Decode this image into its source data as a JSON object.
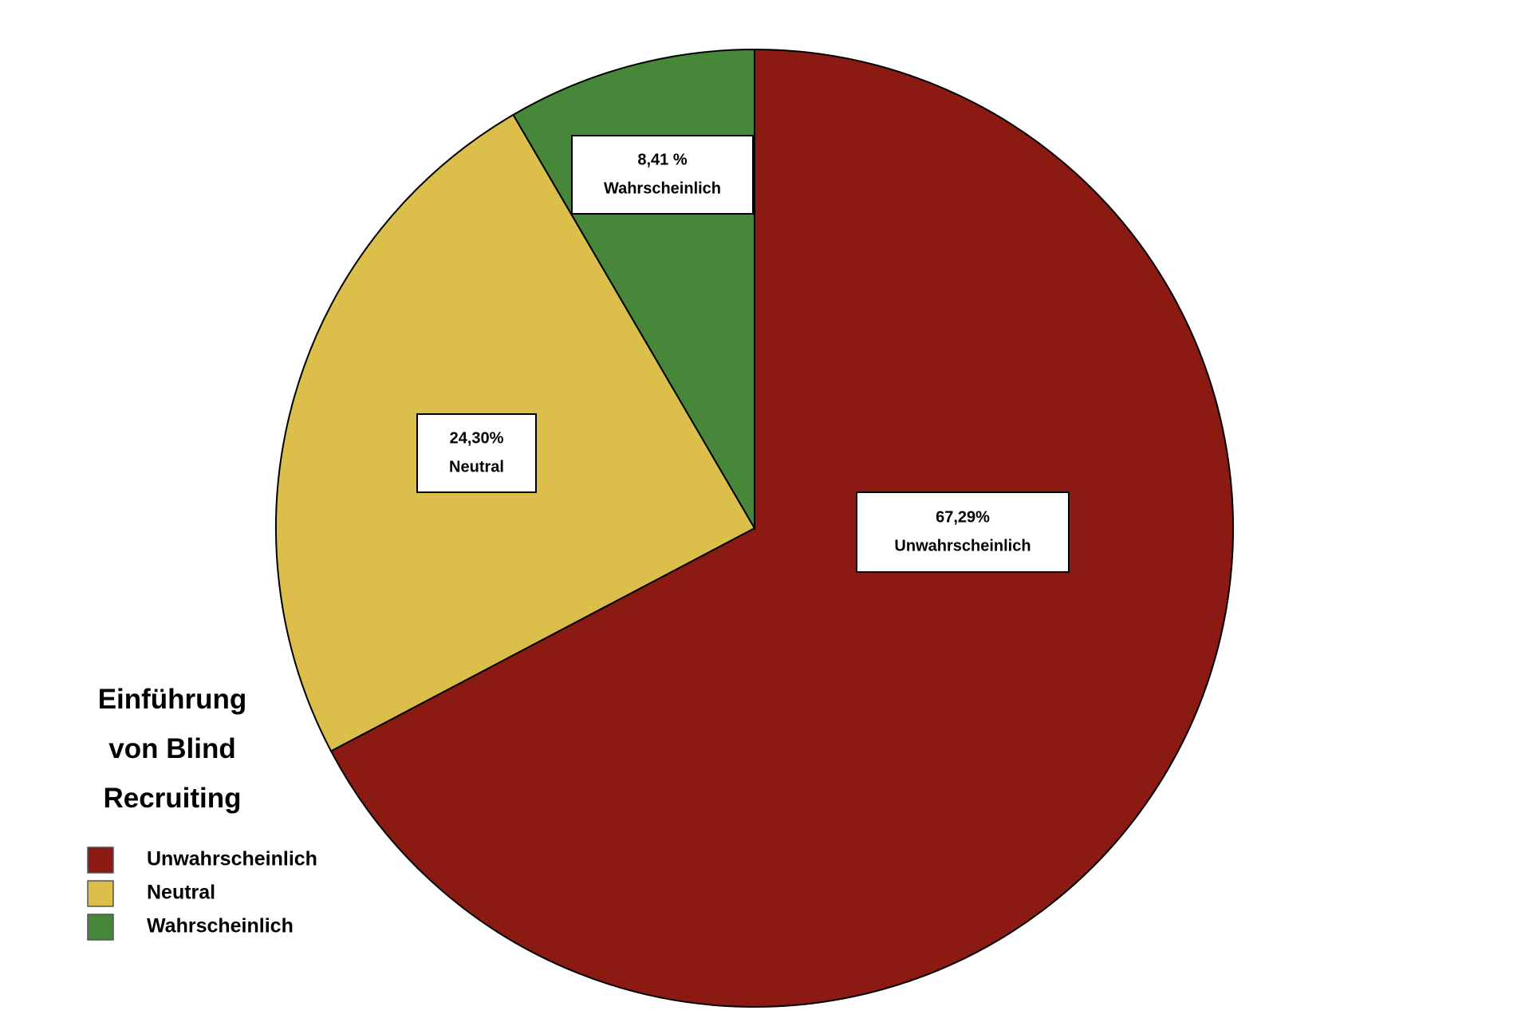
{
  "chart_data": {
    "type": "pie",
    "title": "Einführung von Blind Recruiting",
    "categories": [
      "Unwahrscheinlich",
      "Neutral",
      "Wahrscheinlich"
    ],
    "values": [
      67.29,
      24.3,
      8.41
    ],
    "value_labels": [
      "67,29%",
      "24,30%",
      "8,41 %"
    ],
    "colors": [
      "#8b1a12",
      "#dcbf4a",
      "#46873a"
    ]
  }
}
